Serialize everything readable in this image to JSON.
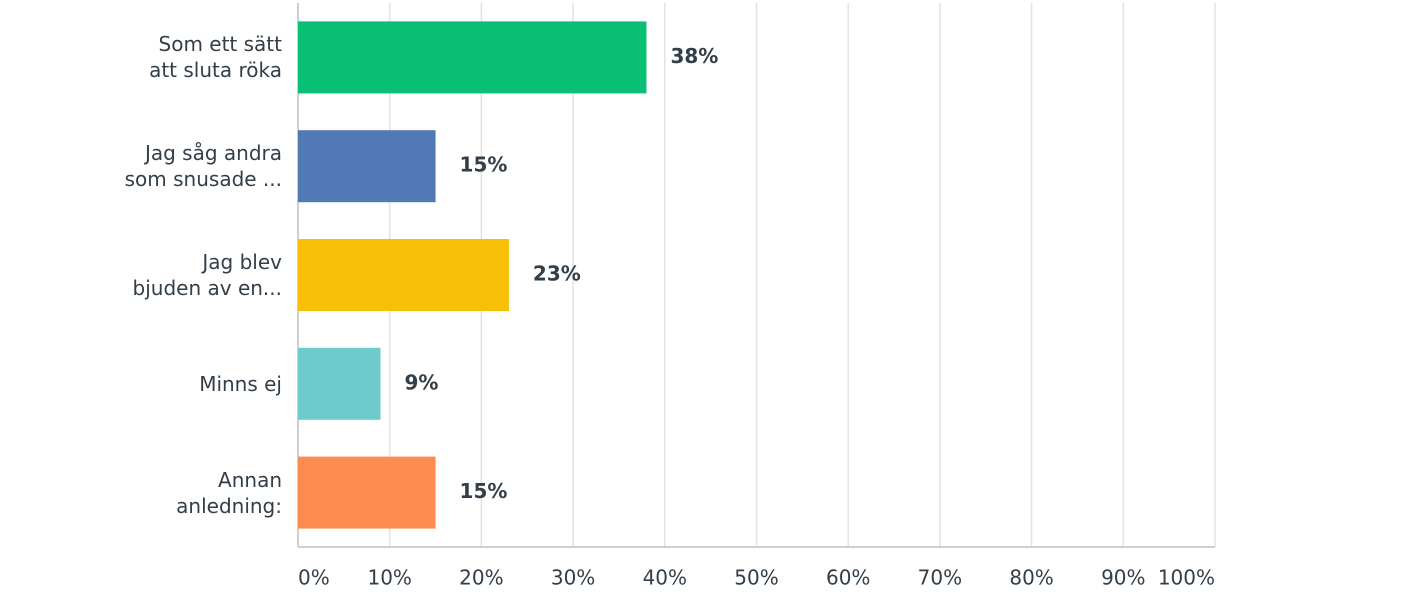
{
  "chart_data": {
    "type": "hbar",
    "categories": [
      "Som ett sätt\natt sluta röka",
      "Jag såg andra\nsom snusade ...",
      "Jag blev\nbjuden av en...",
      "Minns ej",
      "Annan\nanledning:"
    ],
    "values": [
      38,
      15,
      23,
      9,
      15
    ],
    "value_labels": [
      "38%",
      "15%",
      "23%",
      "9%",
      "15%"
    ],
    "colors": [
      "#09bf73",
      "#5079b5",
      "#f8bf07",
      "#6dcbcb",
      "#fe8b4f"
    ],
    "xlim": [
      0,
      100
    ],
    "xticks": [
      {
        "value": 0,
        "label": "0%"
      },
      {
        "value": 10,
        "label": "10%"
      },
      {
        "value": 20,
        "label": "20%"
      },
      {
        "value": 30,
        "label": "30%"
      },
      {
        "value": 40,
        "label": "40%"
      },
      {
        "value": 50,
        "label": "50%"
      },
      {
        "value": 60,
        "label": "60%"
      },
      {
        "value": 70,
        "label": "70%"
      },
      {
        "value": 80,
        "label": "80%"
      },
      {
        "value": 90,
        "label": "90%"
      },
      {
        "value": 100,
        "label": "100%"
      }
    ],
    "grid": true
  }
}
